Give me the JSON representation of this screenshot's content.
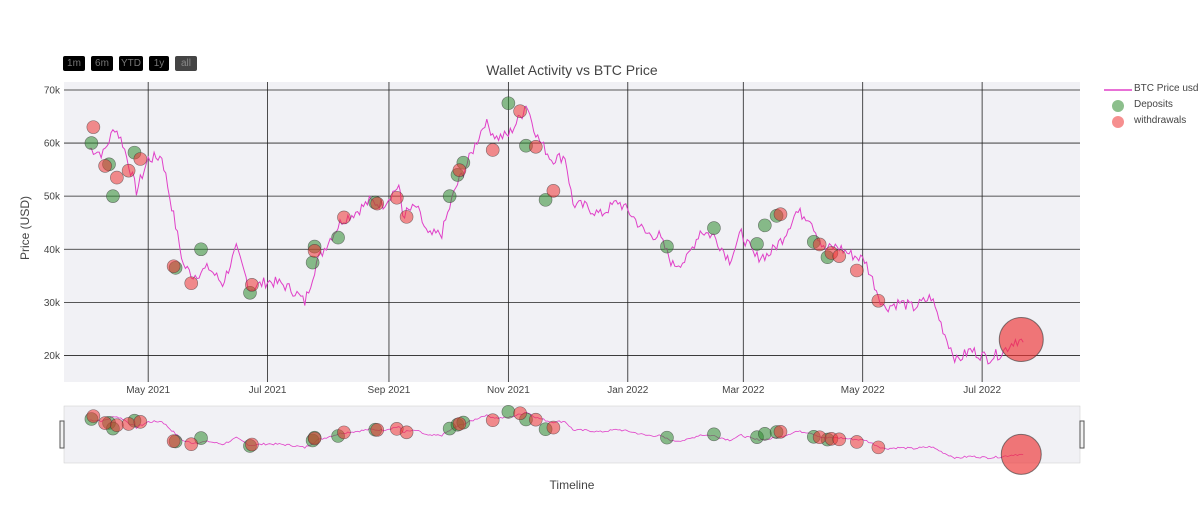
{
  "chart_data": {
    "type": "line",
    "title": "Wallet Activity vs BTC Price",
    "xlabel": "Timeline",
    "ylabel": "Price (USD)",
    "range_selector": [
      "1m",
      "6m",
      "YTD",
      "1y",
      "all"
    ],
    "yticks": [
      "70k",
      "60k",
      "50k",
      "40k",
      "30k",
      "20k"
    ],
    "ytick_values": [
      70000,
      60000,
      50000,
      40000,
      30000,
      20000
    ],
    "xticks": [
      "May 2021",
      "Jul 2021",
      "Sep 2021",
      "Nov 2021",
      "Jan 2022",
      "Mar 2022",
      "May 2022",
      "Jul 2022"
    ],
    "xtick_dates": [
      "2021-05-01",
      "2021-07-01",
      "2021-09-01",
      "2021-11-01",
      "2022-01-01",
      "2022-03-01",
      "2022-05-01",
      "2022-07-01"
    ],
    "xlim": [
      "2021-03-19",
      "2022-08-20"
    ],
    "ylim": [
      15000,
      71500
    ],
    "grid": true,
    "legend_position": "right",
    "colors": {
      "price": "#e040c8",
      "deposit": "#2e8b2e",
      "withdrawal": "#ee3333",
      "plot_bg": "#f1f1f5"
    },
    "series": [
      {
        "name": "BTC Price usd",
        "type": "line",
        "x": [
          "2021-04-01",
          "2021-04-08",
          "2021-04-14",
          "2021-04-18",
          "2021-04-25",
          "2021-05-01",
          "2021-05-08",
          "2021-05-12",
          "2021-05-19",
          "2021-05-24",
          "2021-06-01",
          "2021-06-08",
          "2021-06-15",
          "2021-06-22",
          "2021-07-01",
          "2021-07-08",
          "2021-07-15",
          "2021-07-20",
          "2021-07-26",
          "2021-08-01",
          "2021-08-08",
          "2021-08-15",
          "2021-08-22",
          "2021-08-29",
          "2021-09-06",
          "2021-09-08",
          "2021-09-15",
          "2021-09-21",
          "2021-09-28",
          "2021-10-05",
          "2021-10-12",
          "2021-10-20",
          "2021-10-26",
          "2021-11-01",
          "2021-11-08",
          "2021-11-10",
          "2021-11-16",
          "2021-11-23",
          "2021-11-30",
          "2021-12-04",
          "2021-12-11",
          "2021-12-18",
          "2021-12-27",
          "2022-01-03",
          "2022-01-10",
          "2022-01-17",
          "2022-01-24",
          "2022-01-31",
          "2022-02-07",
          "2022-02-14",
          "2022-02-22",
          "2022-02-28",
          "2022-03-07",
          "2022-03-14",
          "2022-03-21",
          "2022-03-28",
          "2022-04-04",
          "2022-04-11",
          "2022-04-18",
          "2022-04-25",
          "2022-05-02",
          "2022-05-09",
          "2022-05-12",
          "2022-05-20",
          "2022-05-27",
          "2022-06-05",
          "2022-06-13",
          "2022-06-18",
          "2022-06-25",
          "2022-07-04",
          "2022-07-11",
          "2022-07-18",
          "2022-07-22"
        ],
        "y": [
          59000,
          58000,
          63000,
          60000,
          51000,
          57000,
          57500,
          50000,
          37000,
          35000,
          36500,
          33500,
          40000,
          32500,
          34000,
          33500,
          32000,
          30000,
          37500,
          41500,
          45500,
          47000,
          49000,
          48500,
          52000,
          46500,
          48000,
          42500,
          43000,
          51500,
          57000,
          64000,
          61000,
          61500,
          65500,
          67500,
          61000,
          57000,
          57500,
          48500,
          48000,
          46500,
          49000,
          46500,
          43000,
          42500,
          37000,
          38000,
          43500,
          42500,
          38000,
          43000,
          38500,
          39000,
          42000,
          47000,
          46000,
          40000,
          40500,
          39000,
          38000,
          31500,
          29000,
          30000,
          29000,
          31000,
          23000,
          19000,
          21000,
          19500,
          20500,
          23000,
          22500
        ]
      },
      {
        "name": "Deposits",
        "type": "scatter",
        "points": [
          {
            "x": "2021-04-02",
            "y": 60000
          },
          {
            "x": "2021-04-11",
            "y": 56000
          },
          {
            "x": "2021-04-13",
            "y": 50000
          },
          {
            "x": "2021-04-24",
            "y": 58200
          },
          {
            "x": "2021-05-15",
            "y": 36500
          },
          {
            "x": "2021-05-28",
            "y": 40000
          },
          {
            "x": "2021-06-22",
            "y": 31800
          },
          {
            "x": "2021-07-24",
            "y": 37500
          },
          {
            "x": "2021-07-25",
            "y": 40500
          },
          {
            "x": "2021-08-06",
            "y": 42200
          },
          {
            "x": "2021-08-25",
            "y": 48800
          },
          {
            "x": "2021-10-02",
            "y": 50000
          },
          {
            "x": "2021-10-06",
            "y": 54000
          },
          {
            "x": "2021-10-09",
            "y": 56300
          },
          {
            "x": "2021-11-01",
            "y": 67500
          },
          {
            "x": "2021-11-10",
            "y": 59500
          },
          {
            "x": "2021-11-20",
            "y": 49300
          },
          {
            "x": "2022-01-21",
            "y": 40500
          },
          {
            "x": "2022-02-14",
            "y": 44000
          },
          {
            "x": "2022-03-08",
            "y": 41000
          },
          {
            "x": "2022-03-12",
            "y": 44500
          },
          {
            "x": "2022-03-18",
            "y": 46300
          },
          {
            "x": "2022-04-06",
            "y": 41400
          },
          {
            "x": "2022-04-13",
            "y": 38500
          }
        ]
      },
      {
        "name": "withdrawals",
        "type": "scatter",
        "points": [
          {
            "x": "2021-04-03",
            "y": 63000
          },
          {
            "x": "2021-04-09",
            "y": 55700
          },
          {
            "x": "2021-04-15",
            "y": 53500
          },
          {
            "x": "2021-04-21",
            "y": 54800
          },
          {
            "x": "2021-04-27",
            "y": 57000
          },
          {
            "x": "2021-05-14",
            "y": 36800
          },
          {
            "x": "2021-05-23",
            "y": 33600
          },
          {
            "x": "2021-06-23",
            "y": 33300
          },
          {
            "x": "2021-07-25",
            "y": 39700
          },
          {
            "x": "2021-08-09",
            "y": 46000
          },
          {
            "x": "2021-08-26",
            "y": 48600
          },
          {
            "x": "2021-09-05",
            "y": 49700
          },
          {
            "x": "2021-09-10",
            "y": 46100
          },
          {
            "x": "2021-10-07",
            "y": 54900
          },
          {
            "x": "2021-10-24",
            "y": 58700
          },
          {
            "x": "2021-11-07",
            "y": 66000
          },
          {
            "x": "2021-11-15",
            "y": 59300
          },
          {
            "x": "2021-11-24",
            "y": 51000
          },
          {
            "x": "2022-03-20",
            "y": 46600
          },
          {
            "x": "2022-04-09",
            "y": 40900
          },
          {
            "x": "2022-04-15",
            "y": 39300
          },
          {
            "x": "2022-04-19",
            "y": 38700
          },
          {
            "x": "2022-04-28",
            "y": 36000
          },
          {
            "x": "2022-05-09",
            "y": 30300
          },
          {
            "x": "2022-07-21",
            "y": 23000,
            "size": "large"
          }
        ]
      }
    ]
  }
}
